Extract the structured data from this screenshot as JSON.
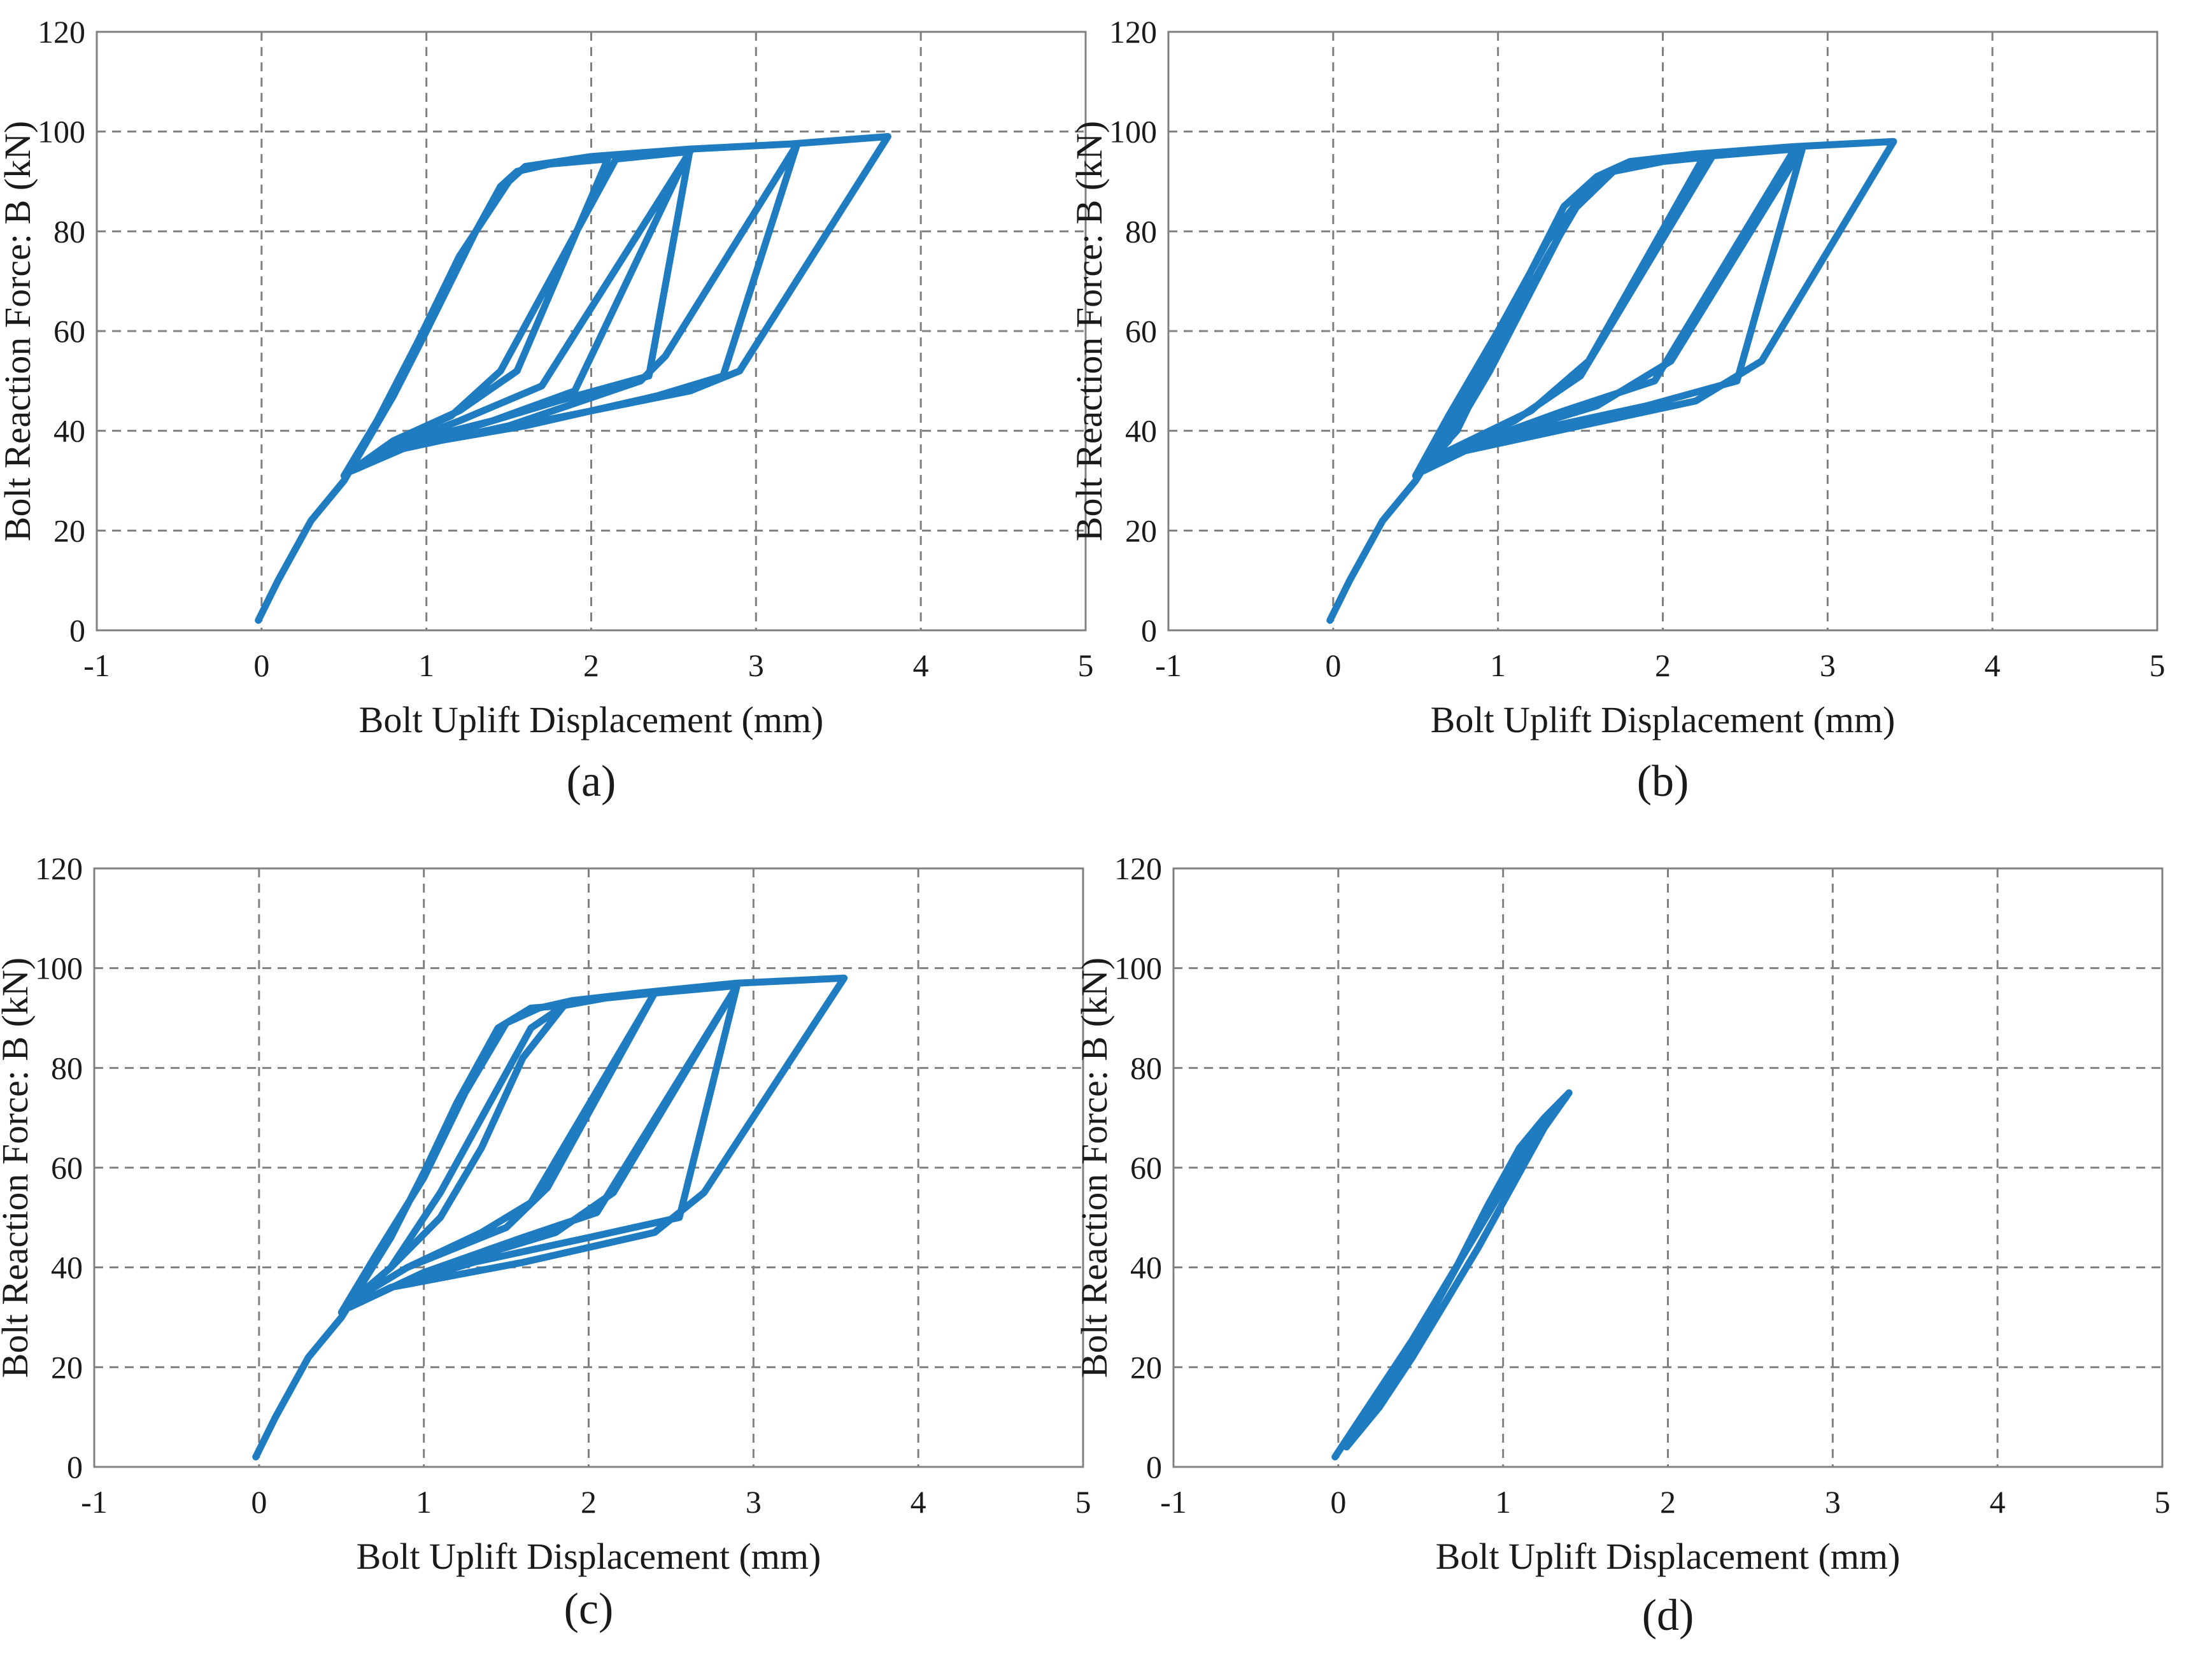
{
  "colors": {
    "series": "#1f7cc1",
    "grid": "#808080",
    "axis": "#808080"
  },
  "chart_data": [
    {
      "type": "line",
      "panel_label": "(a)",
      "xlabel": "Bolt Uplift Displacement (mm)",
      "ylabel": "Bolt Reaction Force: B (kN)",
      "xlim": [
        -1,
        5
      ],
      "ylim": [
        0,
        120
      ],
      "xticks": [
        "-1",
        "0",
        "1",
        "2",
        "3",
        "4",
        "5"
      ],
      "yticks": [
        "0",
        "20",
        "40",
        "60",
        "80",
        "100",
        "120"
      ],
      "grid": true,
      "series": [
        {
          "name": "hysteresis",
          "points": [
            [
              -0.02,
              2
            ],
            [
              0.1,
              10
            ],
            [
              0.3,
              22
            ],
            [
              0.5,
              30
            ],
            [
              0.8,
              47
            ],
            [
              1.0,
              60
            ],
            [
              1.3,
              80
            ],
            [
              1.45,
              89
            ],
            [
              1.55,
              92
            ],
            [
              1.75,
              93.5
            ],
            [
              2.1,
              94.5
            ],
            [
              1.55,
              52
            ],
            [
              1.2,
              44
            ],
            [
              0.8,
              38
            ],
            [
              0.5,
              31
            ],
            [
              0.8,
              38
            ],
            [
              1.15,
              43
            ],
            [
              1.45,
              52
            ],
            [
              2.15,
              94.5
            ],
            [
              2.6,
              96
            ],
            [
              1.7,
              49
            ],
            [
              1.2,
              42
            ],
            [
              0.8,
              37
            ],
            [
              0.55,
              32
            ],
            [
              0.8,
              37
            ],
            [
              1.4,
              42
            ],
            [
              1.9,
              48
            ],
            [
              2.6,
              96.5
            ],
            [
              2.35,
              51
            ],
            [
              1.8,
              46
            ],
            [
              1.2,
              40
            ],
            [
              0.8,
              36
            ],
            [
              0.55,
              32
            ],
            [
              0.8,
              36
            ],
            [
              1.5,
              41
            ],
            [
              2.3,
              50
            ],
            [
              2.45,
              55
            ],
            [
              3.25,
              97.5
            ],
            [
              2.8,
              51
            ],
            [
              2.4,
              47
            ],
            [
              1.6,
              41
            ],
            [
              0.9,
              37
            ],
            [
              0.55,
              32
            ],
            [
              0.9,
              37
            ],
            [
              1.7,
              42
            ],
            [
              2.6,
              48
            ],
            [
              2.9,
              52
            ],
            [
              3.8,
              99
            ],
            [
              3.2,
              97.5
            ],
            [
              2.6,
              96.5
            ],
            [
              2.0,
              95
            ],
            [
              1.6,
              93
            ],
            [
              1.5,
              90
            ],
            [
              1.2,
              75
            ],
            [
              0.95,
              58
            ],
            [
              0.7,
              42
            ],
            [
              0.5,
              31
            ]
          ]
        }
      ]
    },
    {
      "type": "line",
      "panel_label": "(b)",
      "xlabel": "Bolt Uplift Displacement (mm)",
      "ylabel": "Bolt Reaction Force: B (kN)",
      "xlim": [
        -1,
        5
      ],
      "ylim": [
        0,
        120
      ],
      "xticks": [
        "-1",
        "0",
        "1",
        "2",
        "3",
        "4",
        "5"
      ],
      "yticks": [
        "0",
        "20",
        "40",
        "60",
        "80",
        "100",
        "120"
      ],
      "grid": true,
      "series": [
        {
          "name": "hysteresis",
          "points": [
            [
              -0.02,
              2
            ],
            [
              0.1,
              10
            ],
            [
              0.3,
              22
            ],
            [
              0.5,
              30
            ],
            [
              0.8,
              46
            ],
            [
              1.0,
              58
            ],
            [
              1.2,
              72
            ],
            [
              1.4,
              85
            ],
            [
              1.6,
              91
            ],
            [
              1.7,
              92
            ],
            [
              1.45,
              84
            ],
            [
              1.2,
              68
            ],
            [
              0.95,
              52
            ],
            [
              0.7,
              38
            ],
            [
              0.5,
              31
            ],
            [
              0.75,
              40
            ],
            [
              1.0,
              57
            ],
            [
              1.3,
              75
            ],
            [
              1.55,
              89
            ],
            [
              1.7,
              92
            ],
            [
              2.0,
              94
            ],
            [
              2.3,
              95
            ],
            [
              1.5,
              51
            ],
            [
              1.1,
              42
            ],
            [
              0.7,
              36
            ],
            [
              0.5,
              31
            ],
            [
              0.7,
              36
            ],
            [
              1.2,
              44
            ],
            [
              1.55,
              54
            ],
            [
              2.25,
              95
            ],
            [
              2.8,
              96.5
            ],
            [
              1.95,
              50
            ],
            [
              1.4,
              44
            ],
            [
              0.9,
              38
            ],
            [
              0.55,
              32
            ],
            [
              0.9,
              38
            ],
            [
              1.6,
              45
            ],
            [
              2.05,
              54
            ],
            [
              2.85,
              97
            ],
            [
              2.45,
              50
            ],
            [
              1.9,
              45
            ],
            [
              1.2,
              40
            ],
            [
              0.8,
              36
            ],
            [
              0.55,
              32
            ],
            [
              0.8,
              36
            ],
            [
              1.5,
              41
            ],
            [
              2.2,
              46
            ],
            [
              2.6,
              54
            ],
            [
              3.4,
              98
            ],
            [
              2.8,
              97
            ],
            [
              2.2,
              95.5
            ],
            [
              1.8,
              94
            ],
            [
              1.6,
              91
            ],
            [
              1.3,
              78
            ],
            [
              1.0,
              60
            ],
            [
              0.7,
              43
            ],
            [
              0.5,
              31
            ]
          ]
        }
      ]
    },
    {
      "type": "line",
      "panel_label": "(c)",
      "xlabel": "Bolt Uplift Displacement (mm)",
      "ylabel": "Bolt Reaction Force: B (kN)",
      "xlim": [
        -1,
        5
      ],
      "ylim": [
        0,
        120
      ],
      "xticks": [
        "-1",
        "0",
        "1",
        "2",
        "3",
        "4",
        "5"
      ],
      "yticks": [
        "0",
        "20",
        "40",
        "60",
        "80",
        "100",
        "120"
      ],
      "grid": true,
      "series": [
        {
          "name": "hysteresis",
          "points": [
            [
              -0.02,
              2
            ],
            [
              0.1,
              10
            ],
            [
              0.3,
              22
            ],
            [
              0.5,
              30
            ],
            [
              0.8,
              46
            ],
            [
              1.0,
              59
            ],
            [
              1.2,
              73
            ],
            [
              1.45,
              88
            ],
            [
              1.65,
              92
            ],
            [
              1.85,
              92.5
            ],
            [
              1.6,
              82
            ],
            [
              1.35,
              64
            ],
            [
              1.1,
              50
            ],
            [
              0.8,
              40
            ],
            [
              0.55,
              33
            ],
            [
              0.8,
              40
            ],
            [
              1.1,
              55
            ],
            [
              1.4,
              73
            ],
            [
              1.65,
              88
            ],
            [
              1.85,
              92.5
            ],
            [
              2.1,
              94
            ],
            [
              2.4,
              95
            ],
            [
              1.65,
              53
            ],
            [
              1.35,
              47
            ],
            [
              0.9,
              40
            ],
            [
              0.55,
              33
            ],
            [
              0.9,
              40
            ],
            [
              1.5,
              48
            ],
            [
              1.75,
              56
            ],
            [
              2.4,
              95
            ],
            [
              2.9,
              96.5
            ],
            [
              2.05,
              51
            ],
            [
              1.6,
              46
            ],
            [
              1.0,
              39
            ],
            [
              0.55,
              32
            ],
            [
              1.0,
              39
            ],
            [
              1.8,
              47
            ],
            [
              2.15,
              55
            ],
            [
              2.9,
              96.5
            ],
            [
              2.55,
              50
            ],
            [
              2.0,
              46
            ],
            [
              1.3,
              41
            ],
            [
              0.8,
              36
            ],
            [
              0.55,
              32
            ],
            [
              0.8,
              36
            ],
            [
              1.6,
              41
            ],
            [
              2.4,
              47
            ],
            [
              2.7,
              55
            ],
            [
              3.55,
              98
            ],
            [
              2.9,
              97
            ],
            [
              2.3,
              95
            ],
            [
              1.9,
              93.5
            ],
            [
              1.7,
              92
            ],
            [
              1.5,
              89
            ],
            [
              1.25,
              75
            ],
            [
              1.0,
              58
            ],
            [
              0.7,
              42
            ],
            [
              0.5,
              31
            ]
          ]
        }
      ]
    },
    {
      "type": "line",
      "panel_label": "(d)",
      "xlabel": "Bolt Uplift Displacement (mm)",
      "ylabel": "Bolt Reaction Force: B (kN)",
      "xlim": [
        -1,
        5
      ],
      "ylim": [
        0,
        120
      ],
      "xticks": [
        "-1",
        "0",
        "1",
        "2",
        "3",
        "4",
        "5"
      ],
      "yticks": [
        "0",
        "20",
        "40",
        "60",
        "80",
        "100",
        "120"
      ],
      "grid": true,
      "series": [
        {
          "name": "hysteresis",
          "points": [
            [
              -0.02,
              2
            ],
            [
              0.1,
              8
            ],
            [
              0.3,
              18
            ],
            [
              0.5,
              28
            ],
            [
              0.7,
              39
            ],
            [
              0.9,
              52
            ],
            [
              1.1,
              64
            ],
            [
              1.25,
              70
            ],
            [
              1.4,
              75
            ],
            [
              1.25,
              68
            ],
            [
              1.05,
              56
            ],
            [
              0.85,
              44
            ],
            [
              0.65,
              33
            ],
            [
              0.45,
              22
            ],
            [
              0.25,
              12
            ],
            [
              0.05,
              4
            ],
            [
              0.3,
              16
            ],
            [
              0.55,
              30
            ],
            [
              0.8,
              45
            ],
            [
              1.0,
              57
            ],
            [
              1.2,
              68
            ],
            [
              1.38,
              74
            ],
            [
              1.15,
              64
            ],
            [
              0.95,
              53
            ],
            [
              0.75,
              42
            ],
            [
              0.55,
              31
            ],
            [
              0.35,
              20
            ],
            [
              0.1,
              6
            ]
          ]
        }
      ]
    }
  ]
}
